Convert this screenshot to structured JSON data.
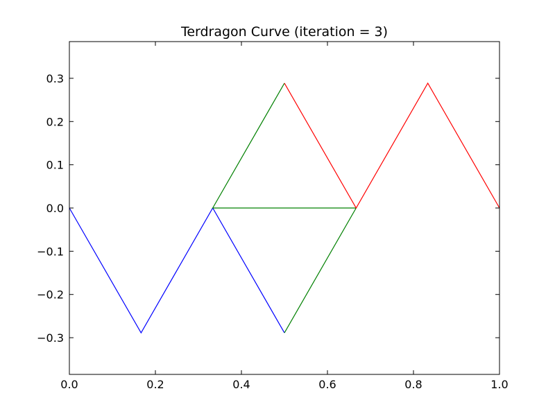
{
  "chart_data": {
    "type": "line",
    "title": "Terdragon Curve  (iteration = 3)",
    "xlabel": "",
    "ylabel": "",
    "xlim": [
      0.0,
      1.0
    ],
    "ylim": [
      -0.3849,
      0.3849
    ],
    "x_ticks": [
      0.0,
      0.2,
      0.4,
      0.6,
      0.8,
      1.0
    ],
    "x_tick_labels": [
      "0.0",
      "0.2",
      "0.4",
      "0.6",
      "0.8",
      "1.0"
    ],
    "y_ticks": [
      -0.3,
      -0.2,
      -0.1,
      0.0,
      0.1,
      0.2,
      0.3
    ],
    "y_tick_labels": [
      "−0.3",
      "−0.2",
      "−0.1",
      "0.0",
      "0.1",
      "0.2",
      "0.3"
    ],
    "grid": false,
    "legend": "none",
    "series": [
      {
        "color": "#0000ff",
        "x": [
          0.0,
          0.1667,
          0.3333,
          0.5
        ],
        "y": [
          0.0,
          -0.2887,
          0.0,
          -0.2887
        ]
      },
      {
        "color": "#008000",
        "x": [
          0.5,
          0.6667,
          0.3333,
          0.5
        ],
        "y": [
          -0.2887,
          0.0,
          0.0,
          0.2887
        ]
      },
      {
        "color": "#ff0000",
        "x": [
          0.5,
          0.6667,
          0.8333,
          1.0
        ],
        "y": [
          0.2887,
          0.0,
          0.2887,
          0.0
        ]
      }
    ]
  }
}
